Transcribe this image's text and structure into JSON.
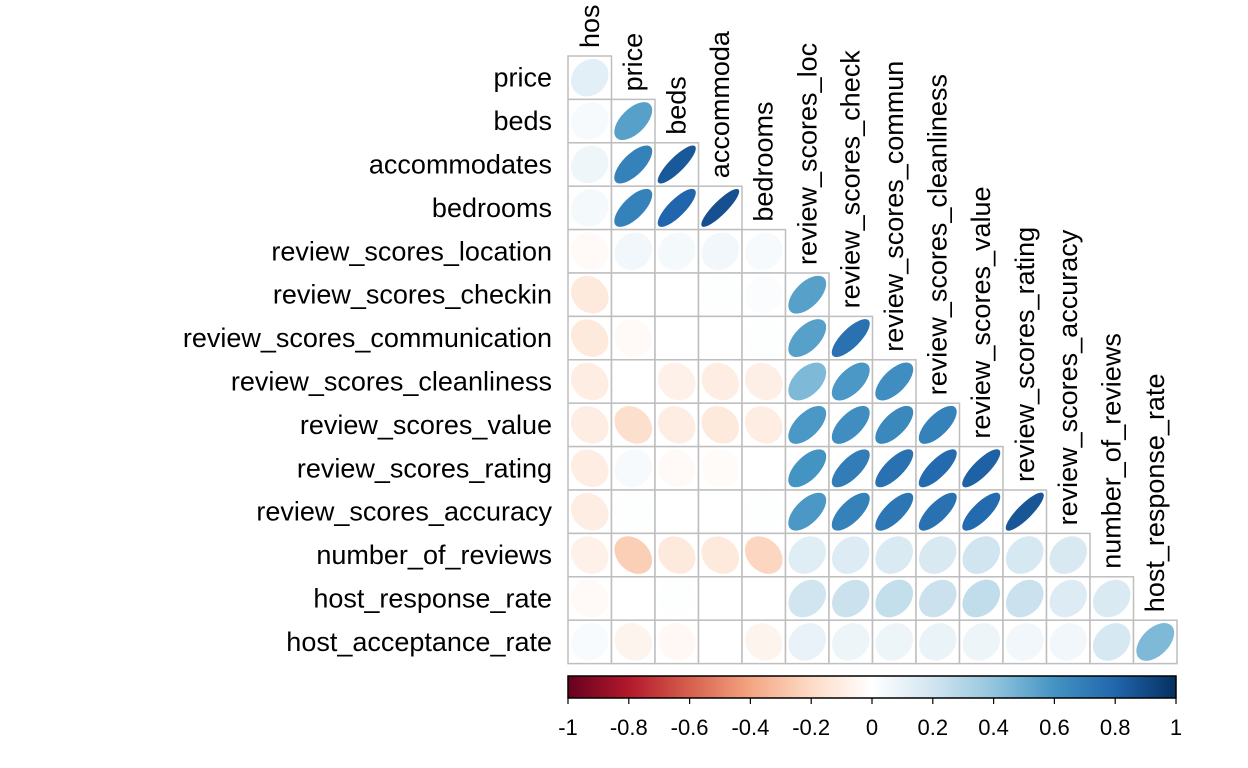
{
  "chart_data": {
    "type": "heatmap",
    "style": "correlation-matrix lower-triangle ellipses",
    "title": "",
    "variables": [
      "host_acceptance_rate",
      "price",
      "beds",
      "accommodates",
      "bedrooms",
      "review_scores_location",
      "review_scores_checkin",
      "review_scores_communication",
      "review_scores_cleanliness",
      "review_scores_value",
      "review_scores_rating",
      "review_scores_accuracy",
      "number_of_reviews",
      "host_response_rate"
    ],
    "column_labels": [
      "hos",
      "price",
      "beds",
      "accommoda",
      "bedrooms",
      "review_scores_loc",
      "review_scores_check",
      "review_scores_commun",
      "review_scores_cleanliness",
      "review_scores_value",
      "review_scores_rating",
      "review_scores_accuracy",
      "number_of_reviews",
      "host_response_rate"
    ],
    "row_labels": [
      "price",
      "beds",
      "accommodates",
      "bedrooms",
      "review_scores_location",
      "review_scores_checkin",
      "review_scores_communication",
      "review_scores_cleanliness",
      "review_scores_value",
      "review_scores_rating",
      "review_scores_accuracy",
      "number_of_reviews",
      "host_response_rate",
      "host_acceptance_rate"
    ],
    "values": [
      [
        0.12
      ],
      [
        0.04,
        0.55
      ],
      [
        0.07,
        0.68,
        0.85
      ],
      [
        0.05,
        0.68,
        0.8,
        0.88
      ],
      [
        -0.03,
        0.06,
        0.05,
        0.06,
        0.04
      ],
      [
        -0.12,
        0.0,
        0.0,
        0.01,
        0.02,
        0.55
      ],
      [
        -0.12,
        -0.03,
        0.0,
        0.0,
        0.01,
        0.55,
        0.75
      ],
      [
        -0.1,
        0.0,
        -0.08,
        -0.1,
        -0.09,
        0.45,
        0.58,
        0.62
      ],
      [
        -0.1,
        -0.18,
        -0.1,
        -0.12,
        -0.1,
        0.58,
        0.62,
        0.65,
        0.68
      ],
      [
        -0.1,
        0.04,
        -0.03,
        -0.02,
        0.0,
        0.6,
        0.7,
        0.75,
        0.78,
        0.82
      ],
      [
        -0.1,
        0.01,
        0.0,
        0.0,
        0.01,
        0.58,
        0.68,
        0.73,
        0.75,
        0.78,
        0.86
      ],
      [
        -0.08,
        -0.25,
        -0.12,
        -0.12,
        -0.22,
        0.14,
        0.15,
        0.16,
        0.17,
        0.2,
        0.18,
        0.17
      ],
      [
        -0.03,
        0.0,
        0.01,
        0.0,
        0.0,
        0.2,
        0.22,
        0.24,
        0.22,
        0.25,
        0.22,
        0.15,
        0.16
      ],
      [
        0.03,
        -0.06,
        -0.04,
        0.0,
        -0.06,
        0.1,
        0.08,
        0.08,
        0.09,
        0.08,
        0.06,
        0.06,
        0.18,
        0.45
      ]
    ],
    "colorbar": {
      "range": [
        -1,
        1
      ],
      "ticks": [
        "-1",
        "-0.8",
        "-0.6",
        "-0.4",
        "-0.2",
        "0",
        "0.2",
        "0.4",
        "0.6",
        "0.8",
        "1"
      ]
    },
    "colors": {
      "negative_end": "#67001F",
      "neutral": "#FFFFFF",
      "positive_end": "#053061",
      "grid": "#BEBEBE"
    }
  }
}
